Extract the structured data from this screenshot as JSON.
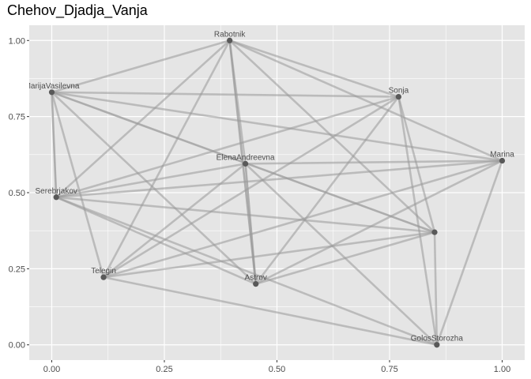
{
  "chart_data": {
    "type": "network",
    "title": "Chehov_Djadja_Vanja",
    "xlabel": "",
    "ylabel": "",
    "xlim": [
      -0.05,
      1.05
    ],
    "ylim": [
      -0.05,
      1.05
    ],
    "x_ticks": [
      0.0,
      0.25,
      0.5,
      0.75,
      1.0
    ],
    "x_tick_labels": [
      "0.00",
      "0.25",
      "0.50",
      "0.75",
      "1.00"
    ],
    "y_ticks": [
      0.0,
      0.25,
      0.5,
      0.75,
      1.0
    ],
    "y_tick_labels": [
      "0.00",
      "0.25",
      "0.50",
      "0.75",
      "1.00"
    ],
    "grid": true,
    "background_color": "#e5e5e5",
    "grid_color": "#ffffff",
    "node_color": "#595959",
    "edge_color": "#999999",
    "nodes": [
      {
        "id": "Rabotnik",
        "label": "Rabotnik",
        "x": 0.395,
        "y": 1.0
      },
      {
        "id": "MarijaVasilevna",
        "label": "MarijaVasilevna",
        "x": 0.0,
        "y": 0.83
      },
      {
        "id": "Sonja",
        "label": "Sonja",
        "x": 0.77,
        "y": 0.815
      },
      {
        "id": "ElenaAndreevna",
        "label": "ElenaAndreevna",
        "x": 0.43,
        "y": 0.595
      },
      {
        "id": "Marina",
        "label": "Marina",
        "x": 1.0,
        "y": 0.605
      },
      {
        "id": "Serebrjakov",
        "label": "Serebrjakov",
        "x": 0.01,
        "y": 0.485
      },
      {
        "id": "Vojnickij",
        "label": "",
        "x": 0.85,
        "y": 0.37
      },
      {
        "id": "Telegin",
        "label": "Telegin",
        "x": 0.115,
        "y": 0.222
      },
      {
        "id": "Astrov",
        "label": "Astrov",
        "x": 0.453,
        "y": 0.2
      },
      {
        "id": "GolosStorozha",
        "label": "GolosStorozha",
        "x": 0.855,
        "y": 0.0
      }
    ],
    "edges": [
      {
        "source": "Rabotnik",
        "target": "MarijaVasilevna",
        "weight": 1
      },
      {
        "source": "Rabotnik",
        "target": "Sonja",
        "weight": 1
      },
      {
        "source": "Rabotnik",
        "target": "ElenaAndreevna",
        "weight": 1
      },
      {
        "source": "Rabotnik",
        "target": "Astrov",
        "weight": 2
      },
      {
        "source": "Rabotnik",
        "target": "Vojnickij",
        "weight": 1
      },
      {
        "source": "Rabotnik",
        "target": "Telegin",
        "weight": 1
      },
      {
        "source": "Rabotnik",
        "target": "Serebrjakov",
        "weight": 1
      },
      {
        "source": "Rabotnik",
        "target": "Marina",
        "weight": 1
      },
      {
        "source": "MarijaVasilevna",
        "target": "Sonja",
        "weight": 1
      },
      {
        "source": "MarijaVasilevna",
        "target": "Vojnickij",
        "weight": 2
      },
      {
        "source": "MarijaVasilevna",
        "target": "Serebrjakov",
        "weight": 2
      },
      {
        "source": "MarijaVasilevna",
        "target": "Telegin",
        "weight": 1
      },
      {
        "source": "MarijaVasilevna",
        "target": "Astrov",
        "weight": 1
      },
      {
        "source": "MarijaVasilevna",
        "target": "Marina",
        "weight": 1
      },
      {
        "source": "Sonja",
        "target": "Serebrjakov",
        "weight": 1
      },
      {
        "source": "Sonja",
        "target": "Telegin",
        "weight": 1
      },
      {
        "source": "Sonja",
        "target": "Astrov",
        "weight": 1
      },
      {
        "source": "Sonja",
        "target": "Vojnickij",
        "weight": 1
      },
      {
        "source": "Sonja",
        "target": "GolosStorozha",
        "weight": 1
      },
      {
        "source": "ElenaAndreevna",
        "target": "Marina",
        "weight": 1
      },
      {
        "source": "ElenaAndreevna",
        "target": "Astrov",
        "weight": 2
      },
      {
        "source": "ElenaAndreevna",
        "target": "Telegin",
        "weight": 1
      },
      {
        "source": "ElenaAndreevna",
        "target": "Serebrjakov",
        "weight": 1
      },
      {
        "source": "ElenaAndreevna",
        "target": "GolosStorozha",
        "weight": 1
      },
      {
        "source": "Marina",
        "target": "Serebrjakov",
        "weight": 1
      },
      {
        "source": "Marina",
        "target": "Telegin",
        "weight": 1
      },
      {
        "source": "Marina",
        "target": "Astrov",
        "weight": 1
      },
      {
        "source": "Marina",
        "target": "GolosStorozha",
        "weight": 1
      },
      {
        "source": "Serebrjakov",
        "target": "Vojnickij",
        "weight": 1
      },
      {
        "source": "Serebrjakov",
        "target": "GolosStorozha",
        "weight": 1
      },
      {
        "source": "Serebrjakov",
        "target": "Astrov",
        "weight": 1
      },
      {
        "source": "Telegin",
        "target": "Vojnickij",
        "weight": 1
      },
      {
        "source": "Telegin",
        "target": "GolosStorozha",
        "weight": 1
      },
      {
        "source": "Astrov",
        "target": "Vojnickij",
        "weight": 1
      },
      {
        "source": "Vojnickij",
        "target": "GolosStorozha",
        "weight": 1
      }
    ]
  }
}
